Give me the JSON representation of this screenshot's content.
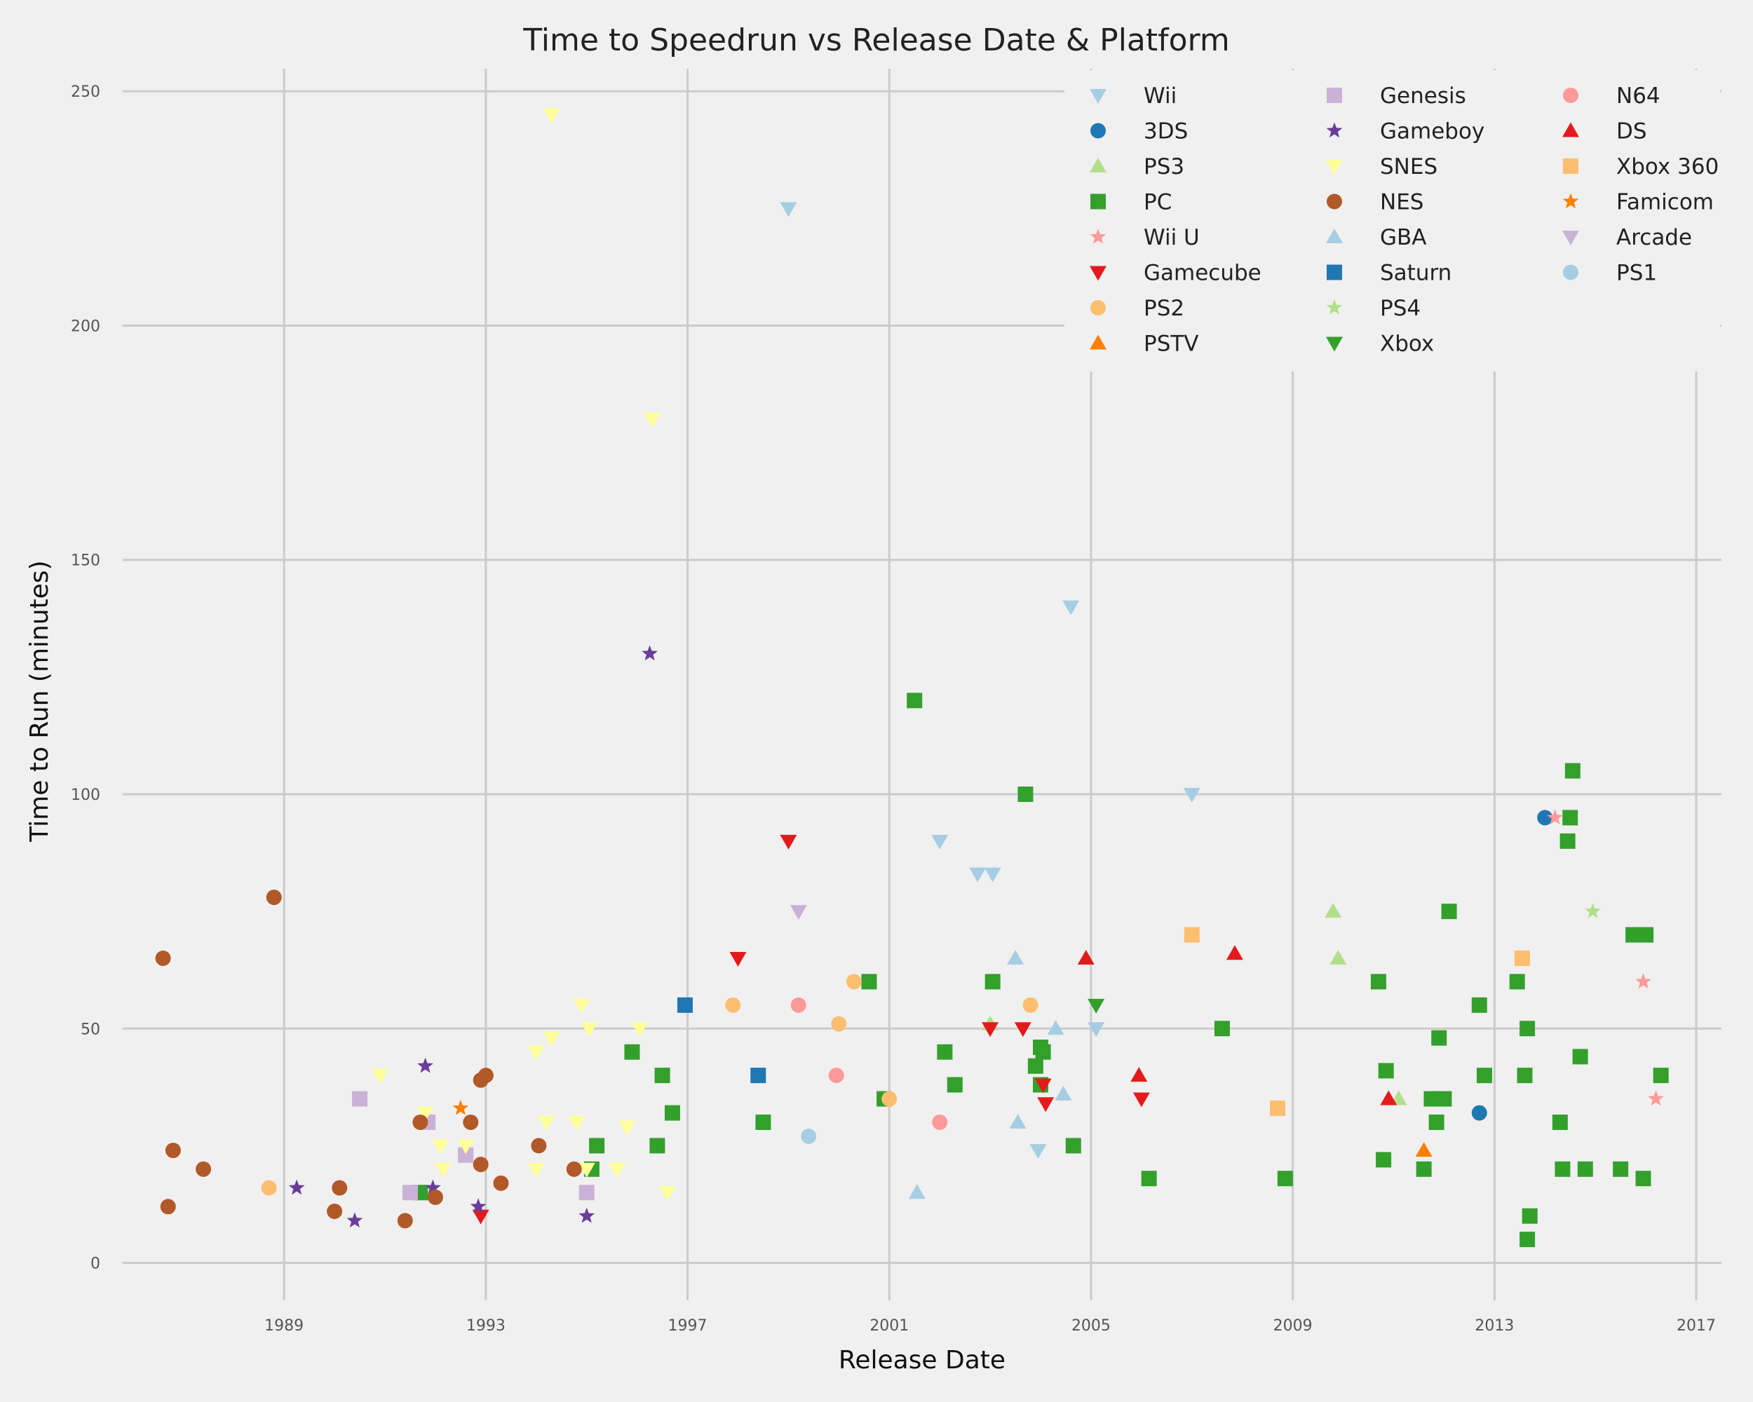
{
  "chart_data": {
    "type": "scatter",
    "title": "Time to Speedrun vs Release Date & Platform",
    "xlabel": "Release Date",
    "ylabel": "Time to Run (minutes)",
    "x_ticks": [
      "1989",
      "1993",
      "1997",
      "2001",
      "2005",
      "2009",
      "2013",
      "2017"
    ],
    "y_ticks": [
      "0",
      "50",
      "100",
      "150",
      "200",
      "250"
    ],
    "xlim": [
      1985.8,
      2017.5
    ],
    "ylim": [
      -8,
      262
    ],
    "grid": true,
    "legend_position": "top-right",
    "legend_columns": 3,
    "series": [
      {
        "name": "Wii",
        "marker": "triangle-down",
        "color": "#a6cee3",
        "points": [
          [
            1999.0,
            225
          ],
          [
            2002.0,
            90
          ],
          [
            2002.75,
            83
          ],
          [
            2003.05,
            83
          ],
          [
            2003.95,
            24
          ],
          [
            2004.6,
            140
          ],
          [
            2005.1,
            50
          ],
          [
            2007.0,
            100
          ]
        ]
      },
      {
        "name": "3DS",
        "marker": "circle",
        "color": "#1f78b4",
        "points": [
          [
            2012.7,
            32
          ],
          [
            2014.0,
            95
          ]
        ]
      },
      {
        "name": "PS3",
        "marker": "triangle-up",
        "color": "#b2df8a",
        "points": [
          [
            2003.0,
            51
          ],
          [
            2009.8,
            75
          ],
          [
            2009.9,
            65
          ],
          [
            2011.1,
            35
          ]
        ]
      },
      {
        "name": "PC",
        "marker": "square",
        "color": "#33a02c",
        "points": [
          [
            1991.7,
            15
          ],
          [
            1995.1,
            20
          ],
          [
            1995.2,
            25
          ],
          [
            1995.9,
            45
          ],
          [
            1996.4,
            25
          ],
          [
            1996.5,
            40
          ],
          [
            1996.7,
            32
          ],
          [
            1998.5,
            30
          ],
          [
            2000.6,
            60
          ],
          [
            2000.9,
            35
          ],
          [
            2001.5,
            120
          ],
          [
            2002.1,
            45
          ],
          [
            2002.3,
            38
          ],
          [
            2003.05,
            60
          ],
          [
            2003.7,
            100
          ],
          [
            2003.9,
            42
          ],
          [
            2004.0,
            46
          ],
          [
            2004.0,
            38
          ],
          [
            2004.05,
            45
          ],
          [
            2004.65,
            25
          ],
          [
            2006.15,
            18
          ],
          [
            2007.6,
            50
          ],
          [
            2008.85,
            18
          ],
          [
            2010.7,
            60
          ],
          [
            2010.8,
            22
          ],
          [
            2010.85,
            41
          ],
          [
            2011.6,
            20
          ],
          [
            2011.75,
            35
          ],
          [
            2011.9,
            48
          ],
          [
            2011.85,
            30
          ],
          [
            2012.0,
            35
          ],
          [
            2012.1,
            75
          ],
          [
            2012.7,
            55
          ],
          [
            2012.8,
            40
          ],
          [
            2013.45,
            60
          ],
          [
            2013.6,
            40
          ],
          [
            2013.65,
            50
          ],
          [
            2013.65,
            5
          ],
          [
            2013.7,
            10
          ],
          [
            2014.3,
            30
          ],
          [
            2014.35,
            20
          ],
          [
            2014.45,
            90
          ],
          [
            2014.5,
            95
          ],
          [
            2014.55,
            105
          ],
          [
            2014.7,
            44
          ],
          [
            2014.8,
            20
          ],
          [
            2015.5,
            20
          ],
          [
            2015.75,
            70
          ],
          [
            2015.95,
            18
          ],
          [
            2016.0,
            70
          ],
          [
            2016.3,
            40
          ]
        ]
      },
      {
        "name": "Wii U",
        "marker": "star",
        "color": "#fb9a99",
        "points": [
          [
            2014.2,
            95
          ],
          [
            2015.95,
            60
          ],
          [
            2016.2,
            35
          ]
        ]
      },
      {
        "name": "Gamecube",
        "marker": "triangle-down",
        "color": "#e31a1c",
        "points": [
          [
            1992.9,
            10
          ],
          [
            1998.0,
            65
          ],
          [
            1999.0,
            90
          ],
          [
            2003.0,
            50
          ],
          [
            2003.65,
            50
          ],
          [
            2004.05,
            38
          ],
          [
            2004.1,
            34
          ],
          [
            2006.0,
            35
          ]
        ]
      },
      {
        "name": "PS2",
        "marker": "circle",
        "color": "#fdbf6f",
        "points": [
          [
            1988.7,
            16
          ],
          [
            1997.9,
            55
          ],
          [
            2000.0,
            51
          ],
          [
            2000.3,
            60
          ],
          [
            2001.0,
            35
          ],
          [
            2003.8,
            55
          ]
        ]
      },
      {
        "name": "PSTV",
        "marker": "triangle-up",
        "color": "#ff7f00",
        "points": [
          [
            2011.6,
            24
          ]
        ]
      },
      {
        "name": "Genesis",
        "marker": "square",
        "color": "#cab2d6",
        "points": [
          [
            1990.5,
            35
          ],
          [
            1991.5,
            15
          ],
          [
            1991.85,
            30
          ],
          [
            1992.6,
            23
          ],
          [
            1995.0,
            15
          ]
        ]
      },
      {
        "name": "Gameboy",
        "marker": "star",
        "color": "#6a3d9a",
        "points": [
          [
            1989.25,
            16
          ],
          [
            1990.4,
            9
          ],
          [
            1991.8,
            42
          ],
          [
            1991.95,
            16
          ],
          [
            1992.85,
            12
          ],
          [
            1995.0,
            10
          ],
          [
            1996.25,
            130
          ]
        ]
      },
      {
        "name": "SNES",
        "marker": "triangle-down",
        "color": "#ffff99",
        "points": [
          [
            1990.9,
            40
          ],
          [
            1991.8,
            32
          ],
          [
            1992.1,
            25
          ],
          [
            1992.15,
            20
          ],
          [
            1992.6,
            25
          ],
          [
            1994.0,
            45
          ],
          [
            1994.0,
            20
          ],
          [
            1994.2,
            30
          ],
          [
            1994.3,
            48
          ],
          [
            1994.3,
            245
          ],
          [
            1994.8,
            30
          ],
          [
            1994.9,
            55
          ],
          [
            1995.0,
            20
          ],
          [
            1995.05,
            50
          ],
          [
            1995.6,
            20
          ],
          [
            1995.8,
            29
          ],
          [
            1996.05,
            50
          ],
          [
            1996.3,
            180
          ],
          [
            1996.6,
            15
          ]
        ]
      },
      {
        "name": "NES",
        "marker": "circle",
        "color": "#b15928",
        "points": [
          [
            1986.6,
            65
          ],
          [
            1986.7,
            12
          ],
          [
            1986.8,
            24
          ],
          [
            1987.4,
            20
          ],
          [
            1988.8,
            78
          ],
          [
            1990.0,
            11
          ],
          [
            1990.1,
            16
          ],
          [
            1991.4,
            9
          ],
          [
            1991.7,
            30
          ],
          [
            1992.0,
            14
          ],
          [
            1992.7,
            30
          ],
          [
            1992.9,
            21
          ],
          [
            1992.9,
            39
          ],
          [
            1993.0,
            40
          ],
          [
            1993.3,
            17
          ],
          [
            1994.05,
            25
          ],
          [
            1994.75,
            20
          ]
        ]
      },
      {
        "name": "GBA",
        "marker": "triangle-up",
        "color": "#a6cee3",
        "points": [
          [
            2001.55,
            15
          ],
          [
            2003.5,
            65
          ],
          [
            2003.55,
            30
          ],
          [
            2004.3,
            50
          ],
          [
            2004.45,
            36
          ]
        ]
      },
      {
        "name": "Saturn",
        "marker": "square",
        "color": "#1f78b4",
        "points": [
          [
            1996.95,
            55
          ],
          [
            1998.4,
            40
          ]
        ]
      },
      {
        "name": "PS4",
        "marker": "star",
        "color": "#b2df8a",
        "points": [
          [
            2014.95,
            75
          ]
        ]
      },
      {
        "name": "Xbox",
        "marker": "triangle-down",
        "color": "#33a02c",
        "points": [
          [
            2005.1,
            55
          ]
        ]
      },
      {
        "name": "N64",
        "marker": "circle",
        "color": "#fb9a99",
        "points": [
          [
            1999.2,
            55
          ],
          [
            1999.95,
            40
          ],
          [
            2002.0,
            30
          ]
        ]
      },
      {
        "name": "DS",
        "marker": "triangle-up",
        "color": "#e31a1c",
        "points": [
          [
            2004.9,
            65
          ],
          [
            2005.95,
            40
          ],
          [
            2007.85,
            66
          ],
          [
            2010.9,
            35
          ]
        ]
      },
      {
        "name": "Xbox 360",
        "marker": "square",
        "color": "#fdbf6f",
        "points": [
          [
            2007.0,
            70
          ],
          [
            2008.7,
            33
          ],
          [
            2013.55,
            65
          ]
        ]
      },
      {
        "name": "Famicom",
        "marker": "star",
        "color": "#ff7f00",
        "points": [
          [
            1992.5,
            33
          ]
        ]
      },
      {
        "name": "Arcade",
        "marker": "triangle-down",
        "color": "#cab2d6",
        "points": [
          [
            1999.2,
            75
          ]
        ]
      },
      {
        "name": "PS1",
        "marker": "circle",
        "color": "#a6cee3",
        "points": [
          [
            1999.4,
            27
          ]
        ]
      }
    ]
  }
}
